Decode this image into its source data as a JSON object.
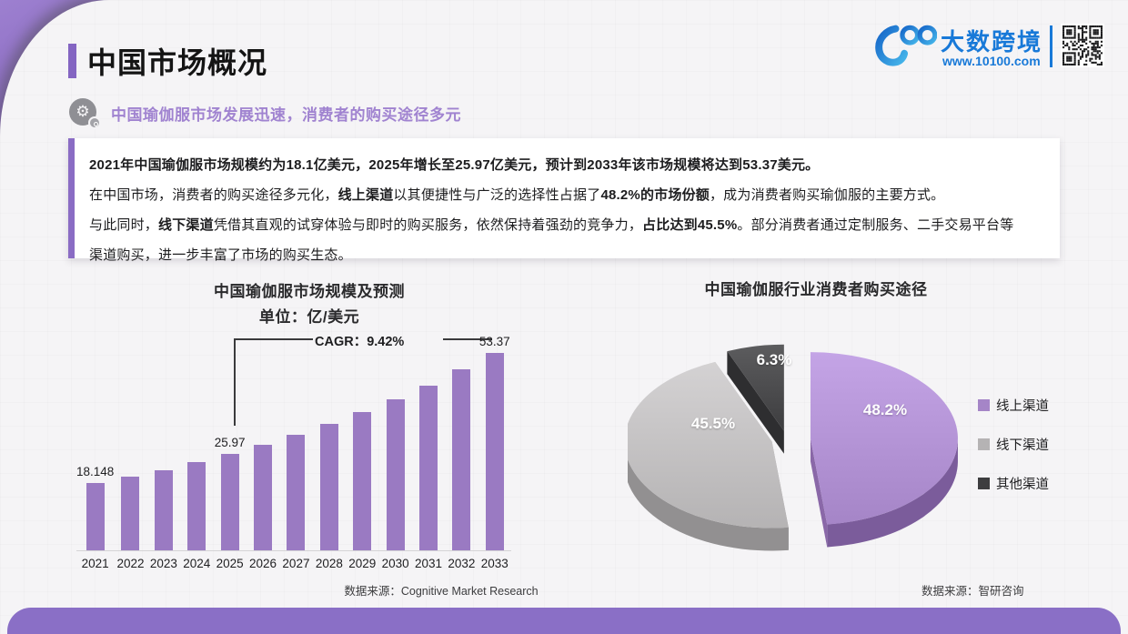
{
  "page": {
    "background": "#f5f4f6",
    "accent_purple": "#8a6cc4",
    "brand_blue": "#1879d8"
  },
  "header": {
    "title": "中国市场概况",
    "subtitle": "中国瑜伽服市场发展迅速，消费者的购买途径多元",
    "brand": {
      "name": "大数跨境",
      "url": "www.10100.com"
    }
  },
  "summary": {
    "lines": [
      [
        {
          "text": "2021年中国瑜伽服市场规模约为18.1亿美元，2025年增长至25.97亿美元，预计到2033年该市场规模将达到53.37美元。",
          "bold": true
        }
      ],
      [
        {
          "text": "在中国市场，消费者的购买途径多元化，"
        },
        {
          "text": "线上渠道",
          "bold": true
        },
        {
          "text": "以其便捷性与广泛的选择性占据了"
        },
        {
          "text": "48.2%的市场份额",
          "bold": true
        },
        {
          "text": "，成为消费者购买瑜伽服的主要方式。"
        }
      ],
      [
        {
          "text": "与此同时，"
        },
        {
          "text": "线下渠道",
          "bold": true
        },
        {
          "text": "凭借其直观的试穿体验与即时的购买服务，依然保持着强劲的竞争力，"
        },
        {
          "text": "占比达到45.5%",
          "bold": true
        },
        {
          "text": "。部分消费者通过定制服务、二手交易平台等"
        }
      ],
      [
        {
          "text": "渠道购买，进一步丰富了市场的购买生态。"
        }
      ]
    ]
  },
  "chart_data": [
    {
      "type": "bar",
      "title": "中国瑜伽服市场规模及预测",
      "subtitle": "单位：亿/美元",
      "categories": [
        "2021",
        "2022",
        "2023",
        "2024",
        "2025",
        "2026",
        "2027",
        "2028",
        "2029",
        "2030",
        "2031",
        "2032",
        "2033"
      ],
      "values": [
        18.148,
        19.86,
        21.73,
        23.77,
        25.97,
        28.42,
        31.1,
        34.03,
        37.23,
        40.74,
        44.58,
        48.78,
        53.37
      ],
      "labeled_points": [
        {
          "category": "2021",
          "label": "18.148"
        },
        {
          "category": "2025",
          "label": "25.97"
        },
        {
          "category": "2033",
          "label": "53.37"
        }
      ],
      "annotation": "CAGR：9.42%",
      "bar_color": "#9a7ac2",
      "ylim": [
        0,
        56
      ],
      "grid": false,
      "source": "数据来源：Cognitive Market Research"
    },
    {
      "type": "pie",
      "title": "中国瑜伽服行业消费者购买途径",
      "labels": [
        "线上渠道",
        "线下渠道",
        "其他渠道"
      ],
      "values": [
        48.2,
        45.5,
        6.3
      ],
      "value_labels": [
        "48.2%",
        "45.5%",
        "6.3%"
      ],
      "colors": [
        "#a585c7",
        "#b5b3b4",
        "#3d3d3f"
      ],
      "legend_position": "right",
      "source": "数据来源：智研咨询"
    }
  ]
}
